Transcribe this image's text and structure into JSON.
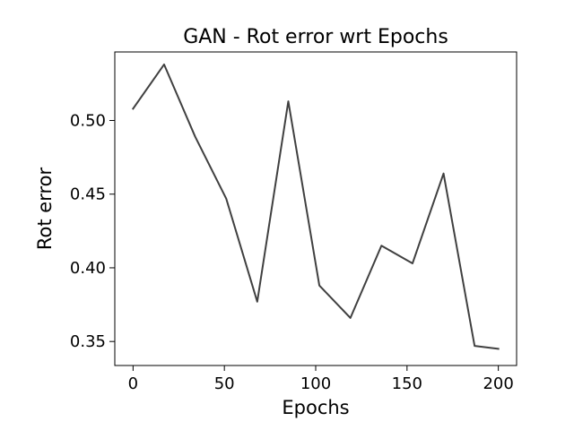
{
  "chart_data": {
    "type": "line",
    "title": "GAN - Rot error wrt Epochs",
    "xlabel": "Epochs",
    "ylabel": "Rot error",
    "xlim": [
      -10,
      210
    ],
    "ylim": [
      0.3337,
      0.5465
    ],
    "x_ticks": [
      0,
      50,
      100,
      150,
      200
    ],
    "y_ticks": [
      0.35,
      0.4,
      0.45,
      0.5
    ],
    "x_tick_labels": [
      "0",
      "50",
      "100",
      "150",
      "200"
    ],
    "y_tick_labels": [
      "0.35",
      "0.40",
      "0.45",
      "0.50"
    ],
    "grid": false,
    "series": [
      {
        "color": "#404040",
        "x": [
          0,
          17,
          34,
          51,
          68,
          85,
          102,
          119,
          136,
          153,
          170,
          187,
          200
        ],
        "y": [
          0.508,
          0.538,
          0.489,
          0.447,
          0.377,
          0.513,
          0.388,
          0.366,
          0.415,
          0.403,
          0.464,
          0.347,
          0.345
        ]
      }
    ]
  }
}
